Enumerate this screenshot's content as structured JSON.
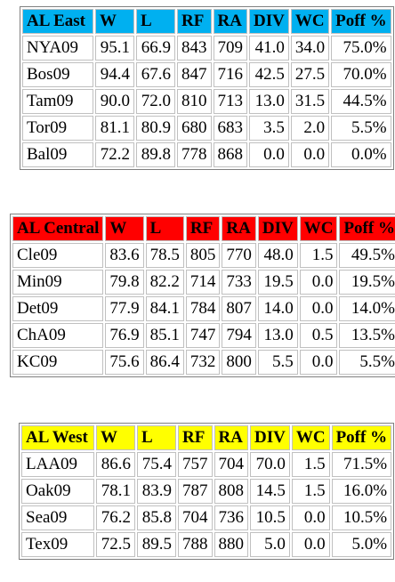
{
  "tables": [
    {
      "id": "east",
      "header_color": "#00B0F0",
      "headers": [
        "AL East",
        "W",
        "L",
        "RF",
        "RA",
        "DIV",
        "WC",
        "Poff %"
      ],
      "rows": [
        [
          "NYA09",
          "95.1",
          "66.9",
          "843",
          "709",
          "41.0",
          "34.0",
          "75.0%"
        ],
        [
          "Bos09",
          "94.4",
          "67.6",
          "847",
          "716",
          "42.5",
          "27.5",
          "70.0%"
        ],
        [
          "Tam09",
          "90.0",
          "72.0",
          "810",
          "713",
          "13.0",
          "31.5",
          "44.5%"
        ],
        [
          "Tor09",
          "81.1",
          "80.9",
          "680",
          "683",
          "3.5",
          "2.0",
          "5.5%"
        ],
        [
          "Bal09",
          "72.2",
          "89.8",
          "778",
          "868",
          "0.0",
          "0.0",
          "0.0%"
        ]
      ]
    },
    {
      "id": "central",
      "header_color": "#FF0000",
      "headers": [
        "AL Central",
        "W",
        "L",
        "RF",
        "RA",
        "DIV",
        "WC",
        "Poff %"
      ],
      "rows": [
        [
          "Cle09",
          "83.6",
          "78.5",
          "805",
          "770",
          "48.0",
          "1.5",
          "49.5%"
        ],
        [
          "Min09",
          "79.8",
          "82.2",
          "714",
          "733",
          "19.5",
          "0.0",
          "19.5%"
        ],
        [
          "Det09",
          "77.9",
          "84.1",
          "784",
          "807",
          "14.0",
          "0.0",
          "14.0%"
        ],
        [
          "ChA09",
          "76.9",
          "85.1",
          "747",
          "794",
          "13.0",
          "0.5",
          "13.5%"
        ],
        [
          "KC09",
          "75.6",
          "86.4",
          "732",
          "800",
          "5.5",
          "0.0",
          "5.5%"
        ]
      ]
    },
    {
      "id": "west",
      "header_color": "#FFFF00",
      "headers": [
        "AL West",
        "W",
        "L",
        "RF",
        "RA",
        "DIV",
        "WC",
        "Poff %"
      ],
      "rows": [
        [
          "LAA09",
          "86.6",
          "75.4",
          "757",
          "704",
          "70.0",
          "1.5",
          "71.5%"
        ],
        [
          "Oak09",
          "78.1",
          "83.9",
          "787",
          "808",
          "14.5",
          "1.5",
          "16.0%"
        ],
        [
          "Sea09",
          "76.2",
          "85.8",
          "704",
          "736",
          "10.5",
          "0.0",
          "10.5%"
        ],
        [
          "Tex09",
          "72.5",
          "89.5",
          "788",
          "880",
          "5.0",
          "0.0",
          "5.0%"
        ]
      ]
    }
  ]
}
